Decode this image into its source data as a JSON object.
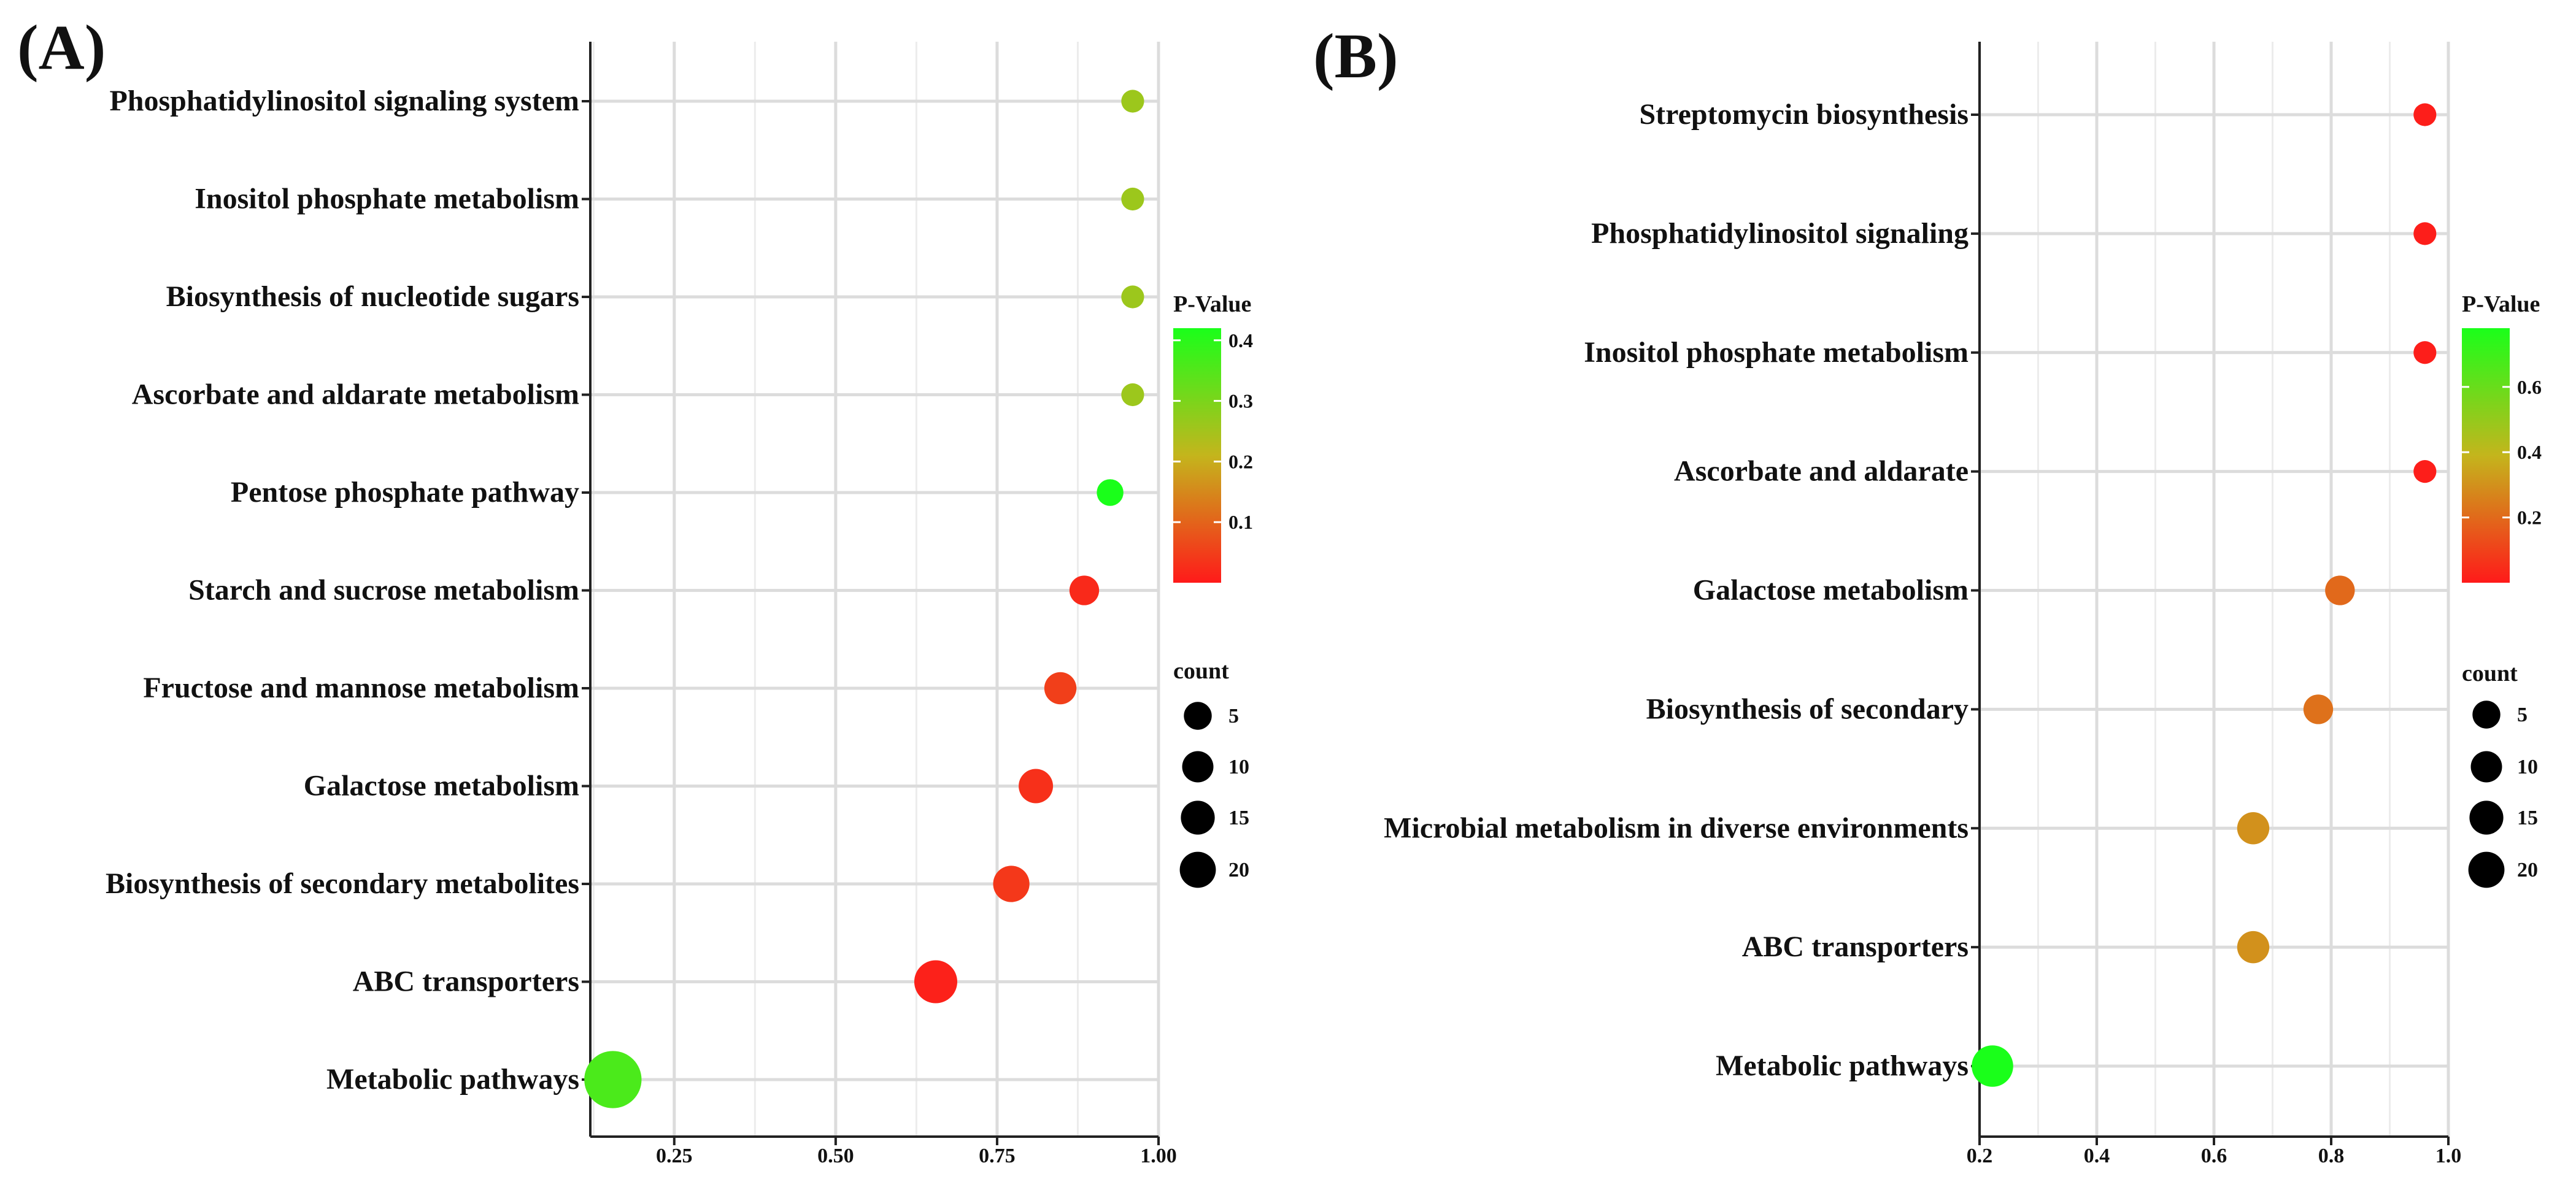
{
  "chart_data": [
    {
      "panel_label": "(A)",
      "type": "scatter",
      "title": "",
      "xlabel": "",
      "ylabel": "",
      "xlim": [
        0.12,
        1.0
      ],
      "x_ticks": [
        0.25,
        0.5,
        0.75,
        1.0
      ],
      "x_tick_labels": [
        "0.25",
        "0.50",
        "0.75",
        "1.00"
      ],
      "grid": true,
      "categories": [
        "Phosphatidylinositol signaling system",
        "Inositol phosphate metabolism",
        "Biosynthesis of nucleotide sugars",
        "Ascorbate and aldarate metabolism",
        "Pentose phosphate pathway",
        "Starch and sucrose metabolism",
        "Fructose and mannose metabolism",
        "Galactose metabolism",
        "Biosynthesis of secondary metabolites",
        "ABC transporters",
        "Metabolic pathways"
      ],
      "x": [
        0.96,
        0.96,
        0.96,
        0.96,
        0.925,
        0.885,
        0.848,
        0.81,
        0.772,
        0.655,
        0.155
      ],
      "count": [
        1,
        1,
        1,
        1,
        2,
        3,
        4,
        5,
        6,
        10,
        22
      ],
      "p_value": [
        0.26,
        0.26,
        0.26,
        0.26,
        0.42,
        0.02,
        0.05,
        0.03,
        0.04,
        0.01,
        0.36
      ],
      "color_legend": {
        "title": "P-Value",
        "min": 0.0,
        "max": 0.42,
        "ticks": [
          0.1,
          0.2,
          0.3,
          0.4
        ],
        "tick_labels": [
          "0.1",
          "0.2",
          "0.3",
          "0.4"
        ],
        "color_low": "#ff1a1a",
        "color_mid": "#c4b51c",
        "color_high": "#1aff1a"
      },
      "size_legend": {
        "title": "count",
        "values": [
          5,
          10,
          15,
          20
        ],
        "labels": [
          "5",
          "10",
          "15",
          "20"
        ]
      }
    },
    {
      "panel_label": "(B)",
      "type": "scatter",
      "title": "",
      "xlabel": "",
      "ylabel": "",
      "xlim": [
        0.2,
        1.0
      ],
      "x_ticks": [
        0.2,
        0.4,
        0.6,
        0.8,
        1.0
      ],
      "x_tick_labels": [
        "0.2",
        "0.4",
        "0.6",
        "0.8",
        "1.0"
      ],
      "grid": true,
      "categories": [
        "Streptomycin biosynthesis",
        "Phosphatidylinositol signaling",
        "Inositol phosphate metabolism",
        "Ascorbate and aldarate",
        "Galactose metabolism",
        "Biosynthesis of secondary",
        "Microbial metabolism in diverse environments",
        "ABC transporters",
        "Metabolic pathways"
      ],
      "x": [
        0.96,
        0.96,
        0.96,
        0.96,
        0.815,
        0.778,
        0.667,
        0.667,
        0.222
      ],
      "count": [
        1,
        1,
        1,
        1,
        3,
        3,
        4,
        4,
        9
      ],
      "p_value": [
        0.01,
        0.01,
        0.01,
        0.01,
        0.2,
        0.22,
        0.3,
        0.3,
        0.78
      ],
      "color_legend": {
        "title": "P-Value",
        "min": 0.0,
        "max": 0.78,
        "ticks": [
          0.2,
          0.4,
          0.6
        ],
        "tick_labels": [
          "0.2",
          "0.4",
          "0.6"
        ],
        "color_low": "#ff1a1a",
        "color_mid": "#c4b51c",
        "color_high": "#1aff1a"
      },
      "size_legend": {
        "title": "count",
        "values": [
          5,
          10,
          15,
          20
        ],
        "labels": [
          "5",
          "10",
          "15",
          "20"
        ]
      }
    }
  ]
}
